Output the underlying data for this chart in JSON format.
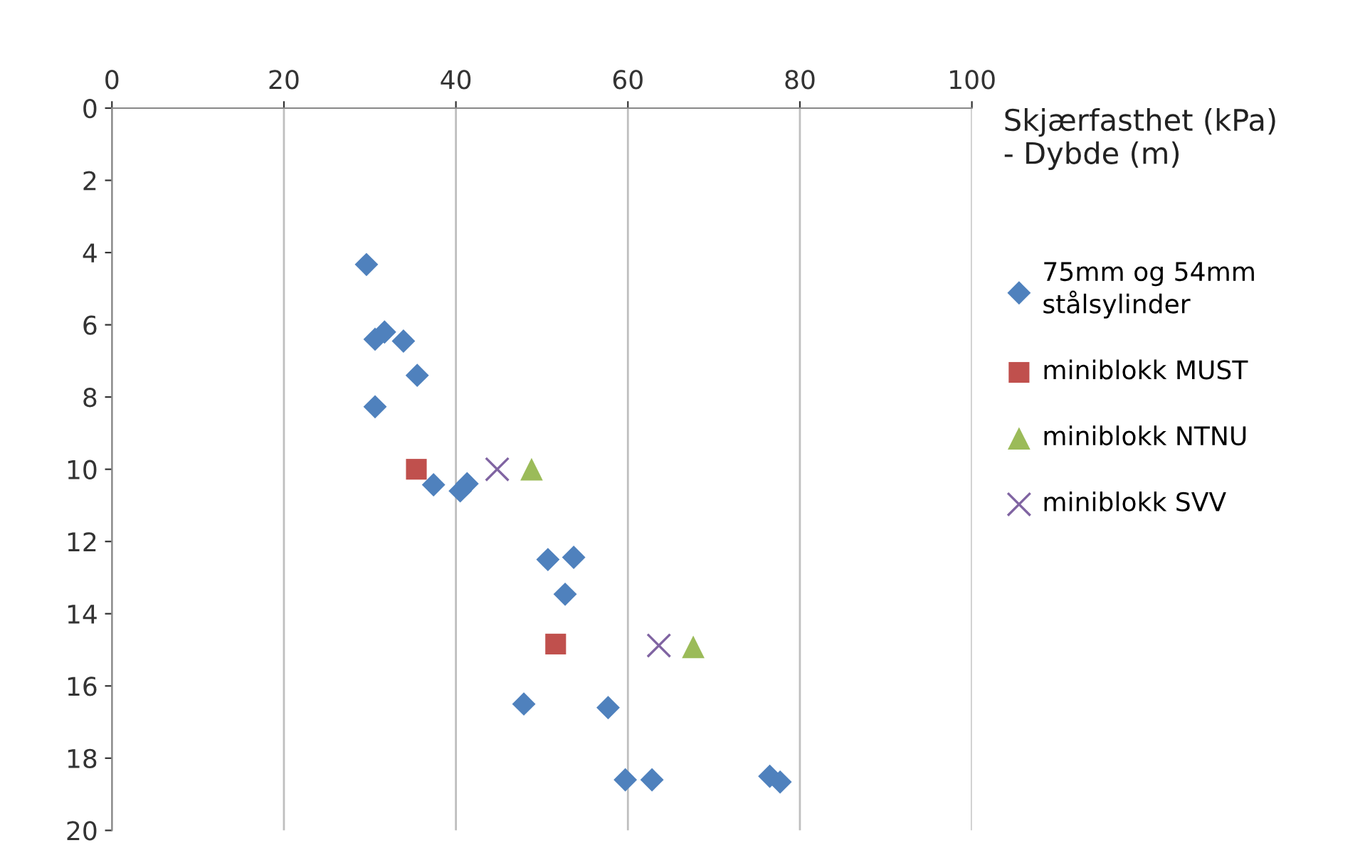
{
  "chart_data": {
    "type": "scatter",
    "title": "Skjærfasthet (kPa)\n- Dybde (m)",
    "xlim": [
      0,
      100
    ],
    "xticks": [
      0,
      20,
      40,
      60,
      80,
      100
    ],
    "ylim": [
      20,
      0
    ],
    "yticks": [
      0,
      2,
      4,
      6,
      8,
      10,
      12,
      14,
      16,
      18,
      20
    ],
    "grid": "x",
    "legend": "right",
    "series": [
      {
        "name": "75mm og 54mm\nstålsylinder",
        "color": "#4f81bd",
        "marker": "diamond",
        "x": [
          29.6,
          30.6,
          31.7,
          33.9,
          35.5,
          30.6,
          37.4,
          40.5,
          41.3,
          50.7,
          53.7,
          52.7,
          47.9,
          57.7,
          59.7,
          62.8,
          76.5,
          77.7
        ],
        "values": [
          4.33,
          6.4,
          6.2,
          6.45,
          7.4,
          8.27,
          10.43,
          10.6,
          10.4,
          12.5,
          12.44,
          13.46,
          16.5,
          16.6,
          18.6,
          18.6,
          18.5,
          18.66
        ]
      },
      {
        "name": "miniblokk MUST",
        "color": "#c0504d",
        "marker": "square",
        "x": [
          35.4,
          51.6
        ],
        "values": [
          10.0,
          14.84
        ]
      },
      {
        "name": "miniblokk NTNU",
        "color": "#9bbb59",
        "marker": "triangle",
        "x": [
          48.8,
          67.6
        ],
        "values": [
          10.0,
          14.92
        ]
      },
      {
        "name": "miniblokk SVV",
        "color": "#8064a2",
        "marker": "cross",
        "x": [
          44.8,
          63.6
        ],
        "values": [
          10.0,
          14.88
        ]
      }
    ]
  }
}
